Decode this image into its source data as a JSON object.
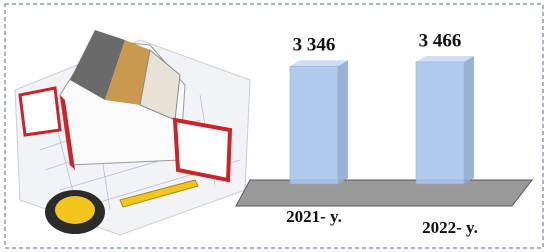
{
  "chart_data": {
    "type": "bar",
    "categories": [
      "2021- y.",
      "2022- y."
    ],
    "values": [
      3346,
      3466
    ],
    "value_labels": [
      "3 346",
      "3 466"
    ],
    "color": "#a9c4ec"
  }
}
